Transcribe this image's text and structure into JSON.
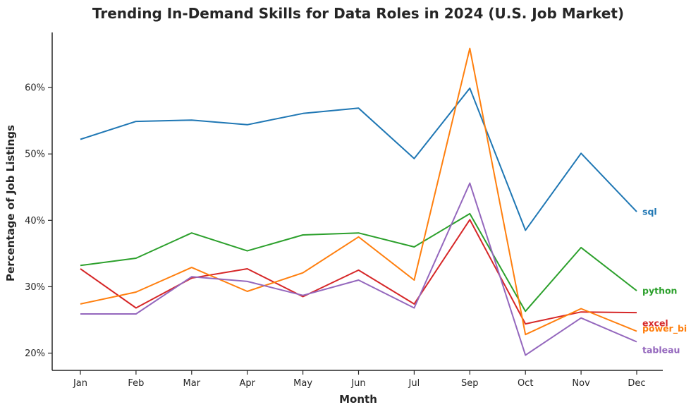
{
  "chart_data": {
    "type": "line",
    "title": "Trending In-Demand Skills for Data Roles in 2024 (U.S. Job Market)",
    "xlabel": "Month",
    "ylabel": "Percentage of Job Listings",
    "categories": [
      "Jan",
      "Feb",
      "Mar",
      "Apr",
      "May",
      "Jun",
      "Jul",
      "Sep",
      "Oct",
      "Nov",
      "Dec"
    ],
    "ylim": [
      17.4,
      68.3
    ],
    "yticks": [
      20,
      30,
      40,
      50,
      60
    ],
    "ytick_labels": [
      "20%",
      "30%",
      "40%",
      "50%",
      "60%"
    ],
    "grid": false,
    "legend": "none; series names are labeled at the right end of each line",
    "series": [
      {
        "name": "sql",
        "color": "#1f77b4",
        "values": [
          52.2,
          54.9,
          55.1,
          54.4,
          56.1,
          56.9,
          49.3,
          59.9,
          38.5,
          50.1,
          41.3
        ]
      },
      {
        "name": "python",
        "color": "#2ca02c",
        "values": [
          33.2,
          34.3,
          38.1,
          35.4,
          37.8,
          38.1,
          36.0,
          41.0,
          26.3,
          35.9,
          29.4
        ]
      },
      {
        "name": "excel",
        "color": "#d62728",
        "values": [
          32.7,
          26.8,
          31.3,
          32.7,
          28.5,
          32.5,
          27.4,
          40.1,
          24.4,
          26.2,
          26.1
        ]
      },
      {
        "name": "power_bi",
        "color": "#ff7f0e",
        "values": [
          27.4,
          29.2,
          32.9,
          29.3,
          32.1,
          37.5,
          31.0,
          65.9,
          22.8,
          26.7,
          23.3
        ]
      },
      {
        "name": "tableau",
        "color": "#9467bd",
        "values": [
          25.9,
          25.9,
          31.5,
          30.8,
          28.7,
          31.0,
          26.8,
          45.6,
          19.7,
          25.3,
          21.7
        ]
      }
    ],
    "end_labels": [
      "sql",
      "python",
      "excel",
      "power_bi",
      "tableau"
    ]
  }
}
